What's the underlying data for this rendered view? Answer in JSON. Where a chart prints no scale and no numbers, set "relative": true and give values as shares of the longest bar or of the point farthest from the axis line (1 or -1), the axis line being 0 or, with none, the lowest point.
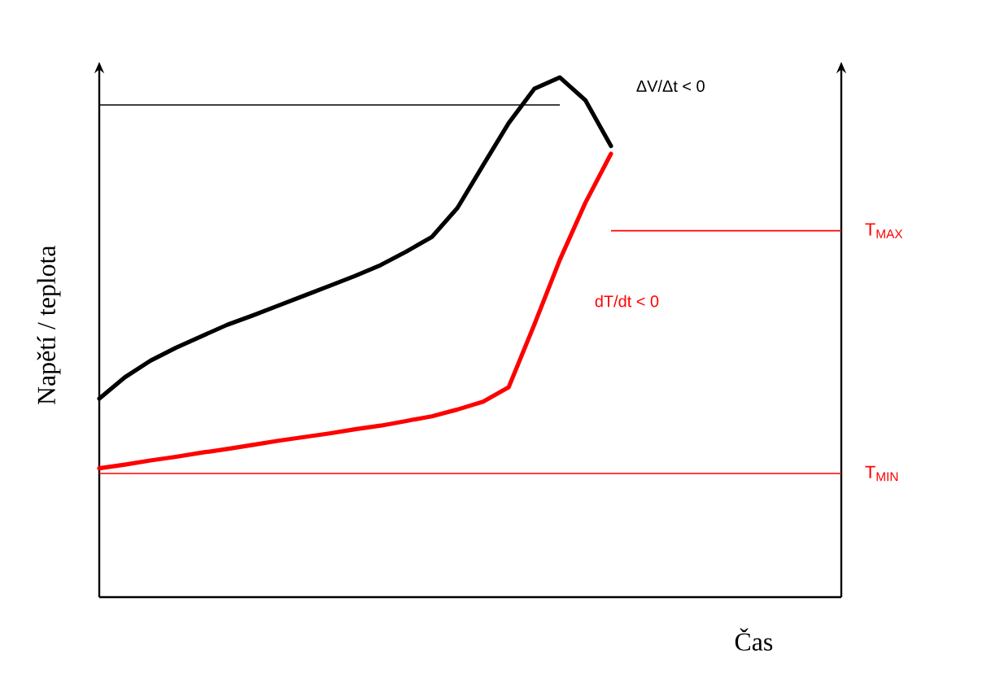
{
  "chart_data": {
    "type": "line",
    "relative": true,
    "xlabel": "Čas",
    "ylabel": "Napětí / teplota",
    "marker": "none",
    "line_style": "solid",
    "categories": [
      null,
      null,
      null,
      null,
      null,
      null,
      null,
      null,
      null,
      null,
      null,
      null,
      null,
      null,
      null,
      null,
      null,
      null,
      null,
      null,
      null,
      null,
      null,
      null,
      null,
      null,
      null,
      null,
      null,
      null
    ],
    "series": [
      {
        "color": "#000000",
        "values": [
          0.382,
          0.423,
          0.455,
          0.48,
          0.502,
          0.524,
          0.542,
          0.561,
          0.58,
          0.599,
          0.618,
          0.639,
          0.665,
          0.693,
          0.749,
          0.831,
          0.912,
          0.978,
          1.0,
          0.956,
          0.868,
          null,
          null,
          null,
          null,
          null,
          null,
          null,
          null,
          null
        ]
      },
      {
        "color": "#ff0000",
        "values": [
          0.248,
          0.255,
          0.263,
          0.27,
          0.278,
          0.285,
          0.293,
          0.301,
          0.308,
          0.315,
          0.323,
          0.33,
          0.339,
          0.348,
          0.361,
          0.376,
          0.404,
          0.524,
          0.649,
          0.759,
          0.853,
          null,
          null,
          null,
          null,
          null,
          null,
          null,
          null,
          null
        ]
      }
    ],
    "ref_lines": [
      {
        "axis": "y",
        "value": 0.947,
        "color": "#000000"
      },
      {
        "axis": "y",
        "value": 0.705,
        "label": "T$_{MAX}$",
        "color": "#ff0000"
      },
      {
        "axis": "y",
        "value": 0.238,
        "label": "T$_{MIN}$",
        "color": "#ff0000"
      }
    ],
    "annotations": [
      "ΔV/Δt < 0",
      "dT/dt < 0"
    ]
  }
}
